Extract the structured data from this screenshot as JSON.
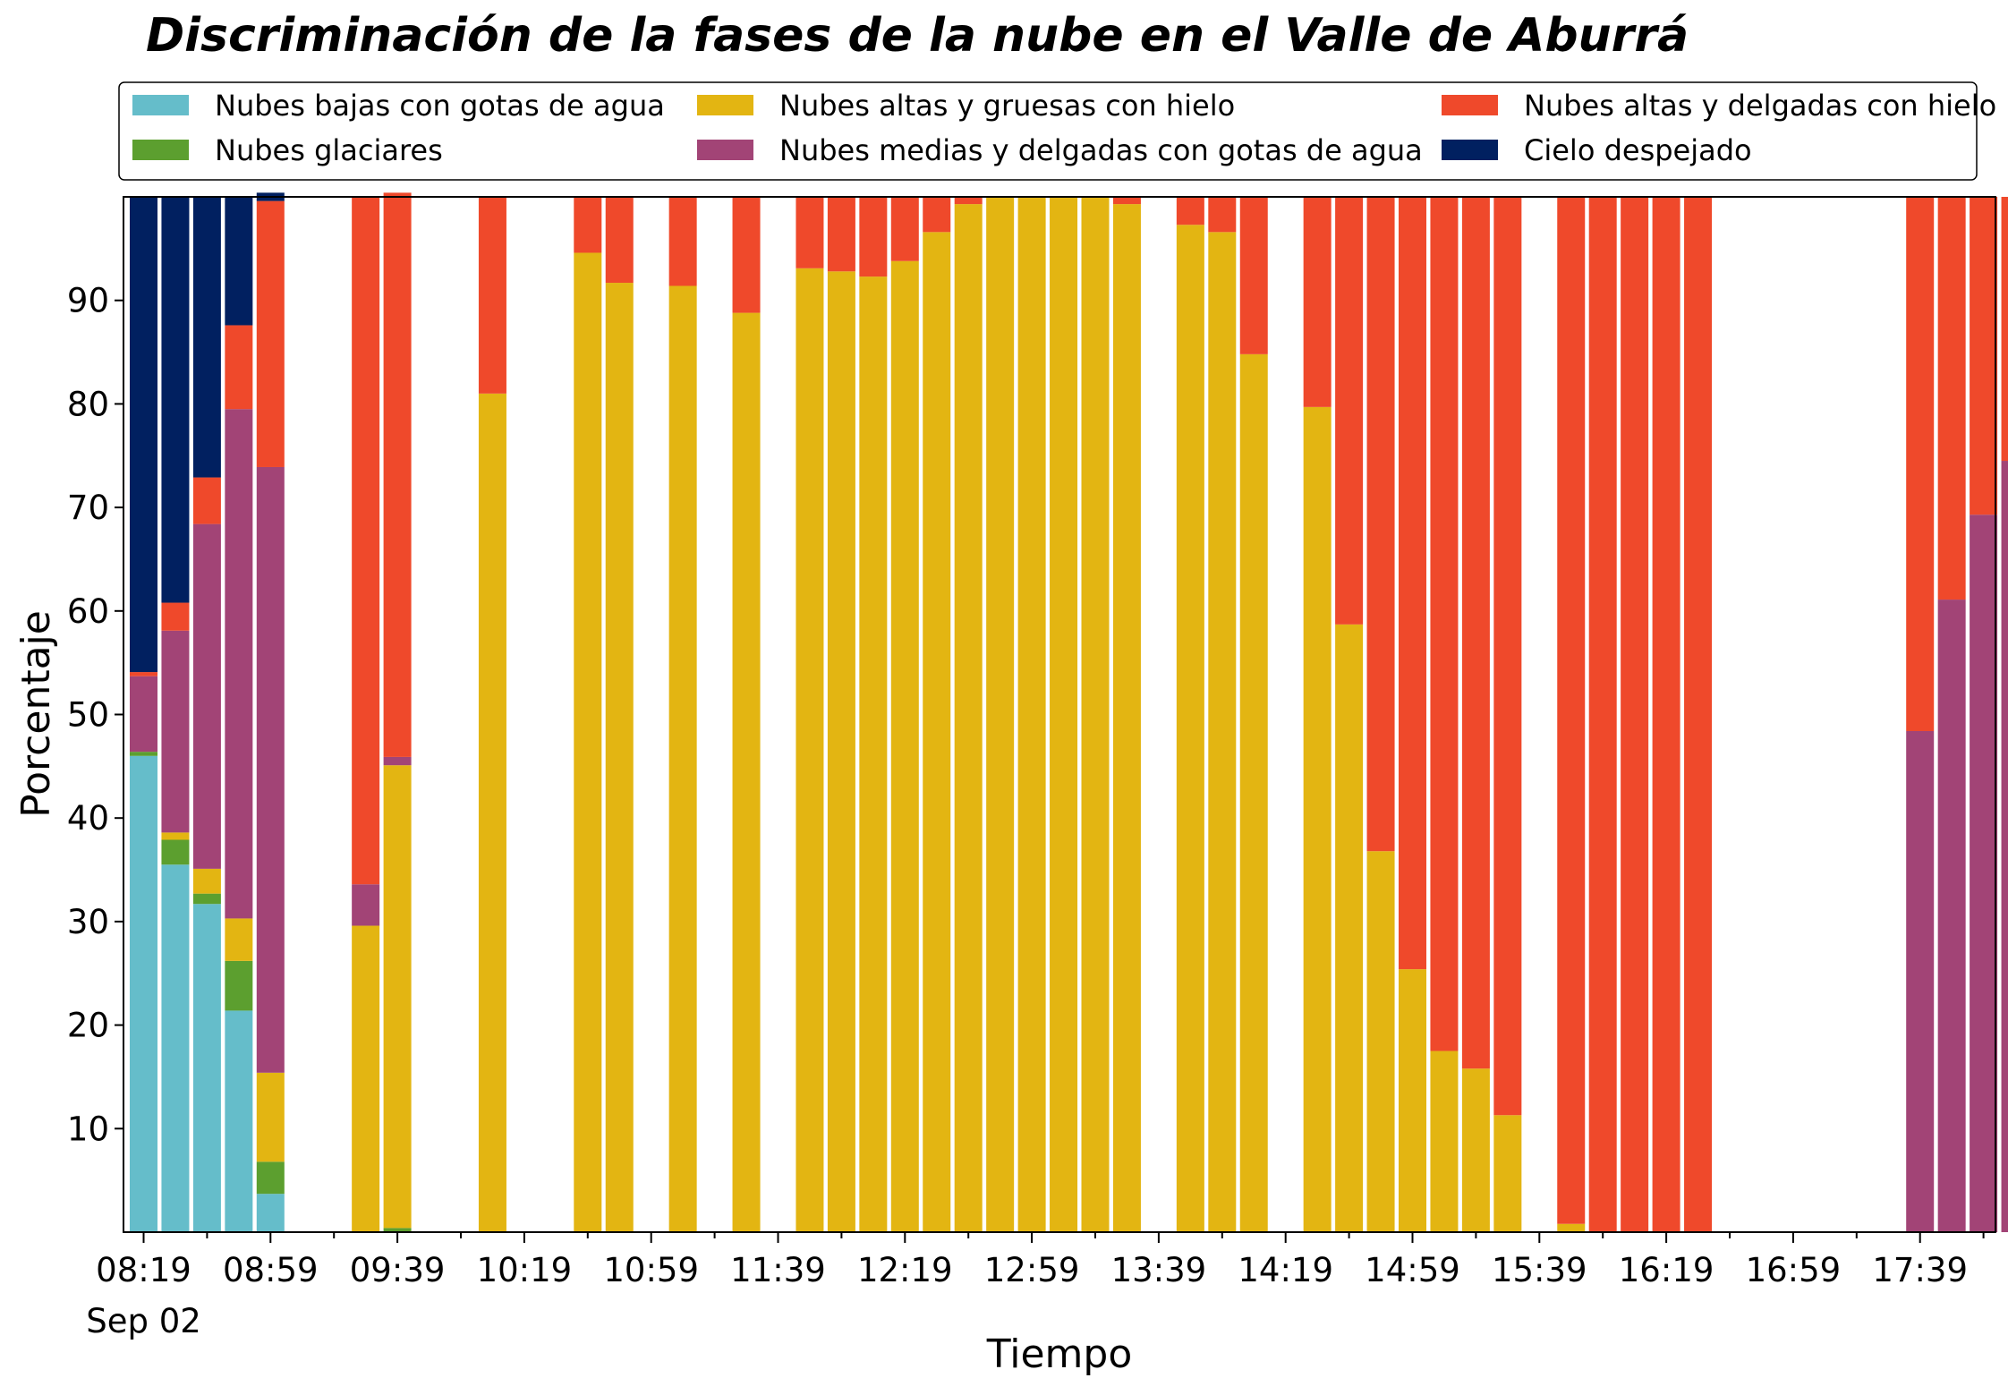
{
  "chart_data": {
    "type": "bar",
    "stacked": true,
    "title": "Discriminación de la fases de la nube en el Valle de Aburrá",
    "xlabel": "Tiempo",
    "ylabel": "Porcentaje",
    "ylim": [
      0,
      100
    ],
    "yticks": [
      10,
      20,
      30,
      40,
      50,
      60,
      70,
      80,
      90
    ],
    "xticks": [
      "08:19",
      "08:59",
      "09:39",
      "10:19",
      "10:59",
      "11:39",
      "12:19",
      "12:59",
      "13:39",
      "14:19",
      "14:59",
      "15:39",
      "16:19",
      "16:59",
      "17:39"
    ],
    "xtick_sublabel": "Sep 02",
    "x_start": "08:19",
    "bin_minutes": 10,
    "legend_position": "top",
    "series": [
      {
        "name": "Nubes bajas con gotas de agua",
        "color": "#65bdca",
        "values": [
          46,
          35.5,
          31.7,
          21.4,
          3.7,
          0,
          0,
          0,
          0,
          0,
          0,
          0,
          0,
          0,
          0,
          0,
          0,
          0,
          0,
          0,
          0,
          0,
          0,
          0,
          0,
          0,
          0,
          0,
          0,
          0,
          0,
          0,
          0,
          0,
          0,
          0,
          0,
          0,
          0,
          0,
          0,
          0,
          0,
          0,
          0,
          0,
          0,
          0,
          0,
          0,
          0,
          0,
          0,
          0,
          0,
          0,
          0,
          0,
          0,
          0
        ]
      },
      {
        "name": "Nubes glaciares",
        "color": "#5c9f2f",
        "values": [
          0.4,
          2.4,
          1,
          4.8,
          3.1,
          0,
          0,
          0,
          0.4,
          0,
          0,
          0,
          0,
          0,
          0,
          0,
          0,
          0,
          0,
          0,
          0,
          0,
          0,
          0,
          0,
          0,
          0,
          0,
          0,
          0,
          0,
          0,
          0,
          0,
          0,
          0,
          0,
          0,
          0,
          0,
          0,
          0,
          0,
          0,
          0,
          0,
          0,
          0,
          0,
          0,
          0,
          0,
          0,
          0,
          0,
          0,
          0,
          0,
          0,
          0
        ]
      },
      {
        "name": "Nubes altas y gruesas con hielo",
        "color": "#e3b512",
        "values": [
          0,
          0.7,
          2.4,
          4.1,
          8.6,
          0,
          0,
          29.6,
          44.7,
          0,
          0,
          81,
          0,
          0,
          94.6,
          91.7,
          0,
          91.4,
          0,
          88.8,
          0,
          93.1,
          92.8,
          92.3,
          93.8,
          96.6,
          99.3,
          100,
          100,
          100,
          100,
          99.3,
          0,
          97.3,
          96.6,
          84.8,
          0,
          79.7,
          58.7,
          36.8,
          25.4,
          17.5,
          15.8,
          11.3,
          0,
          0.8,
          0,
          0,
          0,
          0,
          0,
          0,
          0,
          0,
          0,
          0,
          0,
          0,
          0,
          0
        ]
      },
      {
        "name": "Nubes medias y delgadas con gotas de agua",
        "color": "#a24476",
        "values": [
          7.3,
          19.5,
          33.3,
          49.2,
          58.5,
          0,
          0,
          4,
          0.8,
          0,
          0,
          0,
          0,
          0,
          0,
          0,
          0,
          0,
          0,
          0,
          0,
          0,
          0,
          0,
          0,
          0,
          0,
          0,
          0,
          0,
          0,
          0,
          0,
          0,
          0,
          0,
          0,
          0,
          0,
          0,
          0,
          0,
          0,
          0,
          0,
          0,
          0,
          0,
          0,
          0,
          0,
          0,
          0,
          0,
          0,
          0,
          48.4,
          61.1,
          69.3,
          74.5
        ]
      },
      {
        "name": "Nubes altas y delgadas con hielo",
        "color": "#ef492b",
        "values": [
          0.4,
          2.7,
          4.5,
          8.1,
          25.7,
          0,
          0,
          66.4,
          54.5,
          0,
          0,
          19,
          0,
          0,
          5.4,
          8.3,
          0,
          8.6,
          0,
          11.2,
          0,
          6.9,
          7.2,
          7.7,
          6.2,
          3.4,
          0.7,
          0,
          0,
          0,
          0,
          0.7,
          0,
          2.7,
          3.4,
          15.2,
          0,
          20.3,
          41.3,
          63.2,
          74.6,
          82.5,
          84.2,
          88.7,
          0,
          99.2,
          100,
          100,
          100,
          100,
          0,
          0,
          0,
          0,
          0,
          0,
          51.6,
          38.9,
          30.7,
          25.5
        ]
      },
      {
        "name": "Cielo despejado",
        "color": "#012060",
        "values": [
          45.9,
          39.2,
          27.1,
          12.4,
          0.8,
          0,
          0,
          0,
          0,
          0,
          0,
          0,
          0,
          0,
          0,
          0,
          0,
          0,
          0,
          0,
          0,
          0,
          0,
          0,
          0,
          0,
          0,
          0,
          0,
          0,
          0,
          0,
          0,
          0,
          0,
          0,
          0,
          0,
          0,
          0,
          0,
          0,
          0,
          0,
          0,
          0,
          0,
          0,
          0,
          0,
          0,
          0,
          0,
          0,
          0,
          0,
          0,
          0,
          0,
          0
        ]
      }
    ]
  }
}
